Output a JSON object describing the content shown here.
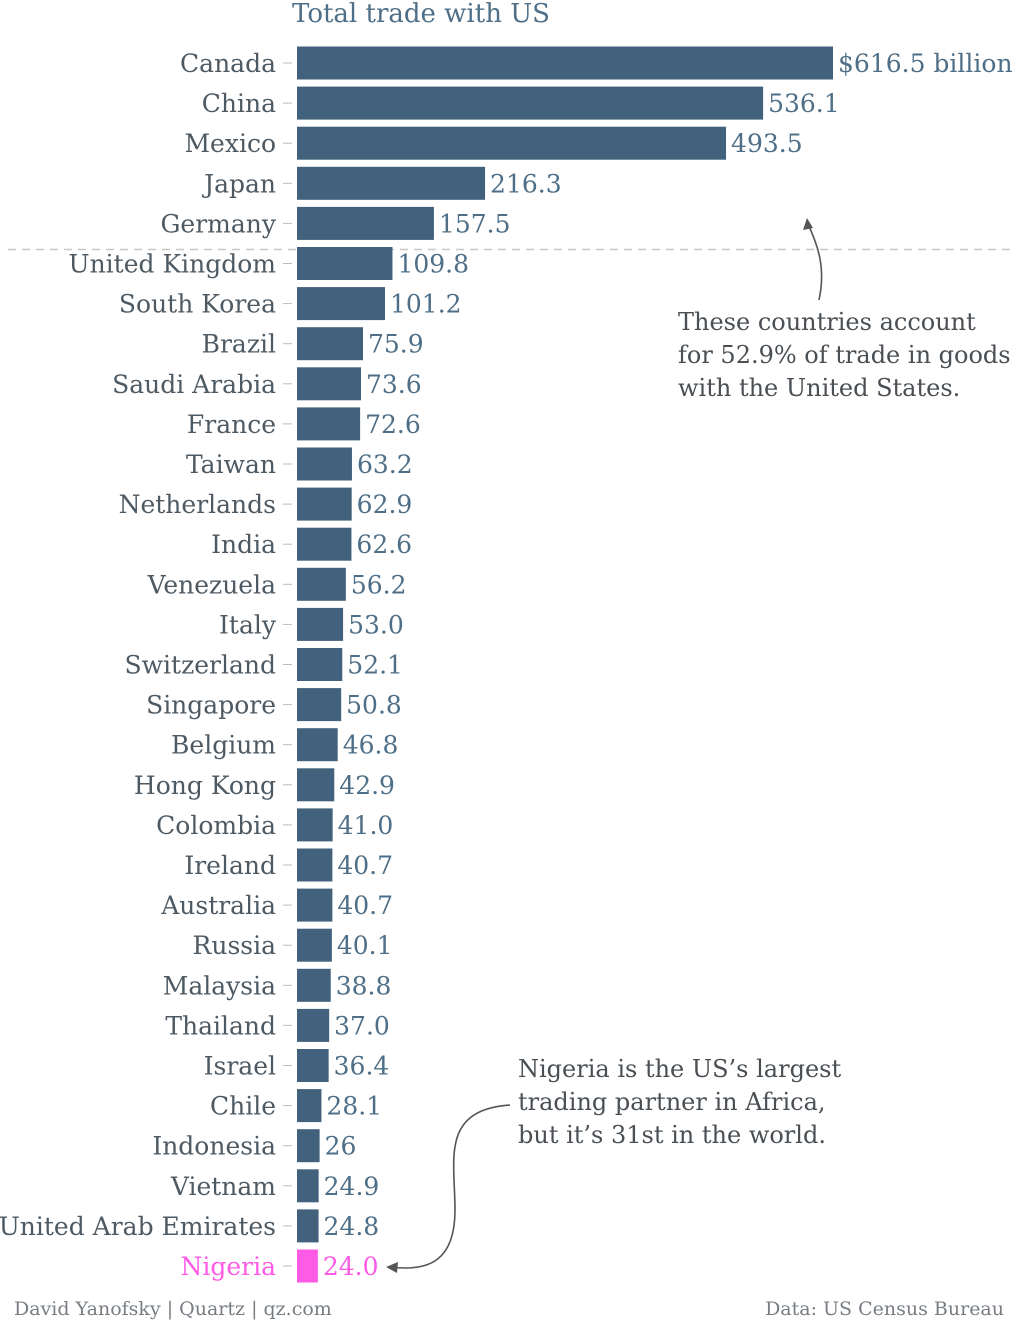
{
  "chart_data": {
    "type": "bar",
    "orientation": "horizontal",
    "title": "Total trade with US",
    "unit_first_label": "$616.5 billion",
    "categories": [
      "Canada",
      "China",
      "Mexico",
      "Japan",
      "Germany",
      "United Kingdom",
      "South Korea",
      "Brazil",
      "Saudi Arabia",
      "France",
      "Taiwan",
      "Netherlands",
      "India",
      "Venezuela",
      "Italy",
      "Switzerland",
      "Singapore",
      "Belgium",
      "Hong Kong",
      "Colombia",
      "Ireland",
      "Australia",
      "Russia",
      "Malaysia",
      "Thailand",
      "Israel",
      "Chile",
      "Indonesia",
      "Vietnam",
      "United Arab Emirates",
      "Nigeria"
    ],
    "values": [
      616.5,
      536.1,
      493.5,
      216.3,
      157.5,
      109.8,
      101.2,
      75.9,
      73.6,
      72.6,
      63.2,
      62.9,
      62.6,
      56.2,
      53.0,
      52.1,
      50.8,
      46.8,
      42.9,
      41.0,
      40.7,
      40.7,
      40.1,
      38.8,
      37.0,
      36.4,
      28.1,
      26,
      24.9,
      24.8,
      24.0
    ],
    "value_labels": [
      "$616.5 billion",
      "536.1",
      "493.5",
      "216.3",
      "157.5",
      "109.8",
      "101.2",
      "75.9",
      "73.6",
      "72.6",
      "63.2",
      "62.9",
      "62.6",
      "56.2",
      "53.0",
      "52.1",
      "50.8",
      "46.8",
      "42.9",
      "41.0",
      "40.7",
      "40.7",
      "40.1",
      "38.8",
      "37.0",
      "36.4",
      "28.1",
      "26",
      "24.9",
      "24.8",
      "24.0"
    ],
    "highlight_category": "Nigeria",
    "xlim": [
      0,
      616.5
    ],
    "grid": false,
    "separator_after": "Germany"
  },
  "colors": {
    "bar": "#41617c",
    "highlight": "#fd5ae5",
    "label": "#4e5a63",
    "value_label": "#4e6f87",
    "separator": "#c8c8c8",
    "arrow": "#555555"
  },
  "annotations": {
    "top_countries": {
      "lines": [
        "These countries account",
        "for 52.9% of trade in goods",
        "with the United States."
      ]
    },
    "nigeria": {
      "lines": [
        "Nigeria is the US’s largest",
        "trading partner in Africa,",
        "but it’s 31st in the world."
      ]
    }
  },
  "footer": {
    "credit": "David Yanofsky | Quartz | qz.com",
    "source": "Data: US Census Bureau"
  }
}
